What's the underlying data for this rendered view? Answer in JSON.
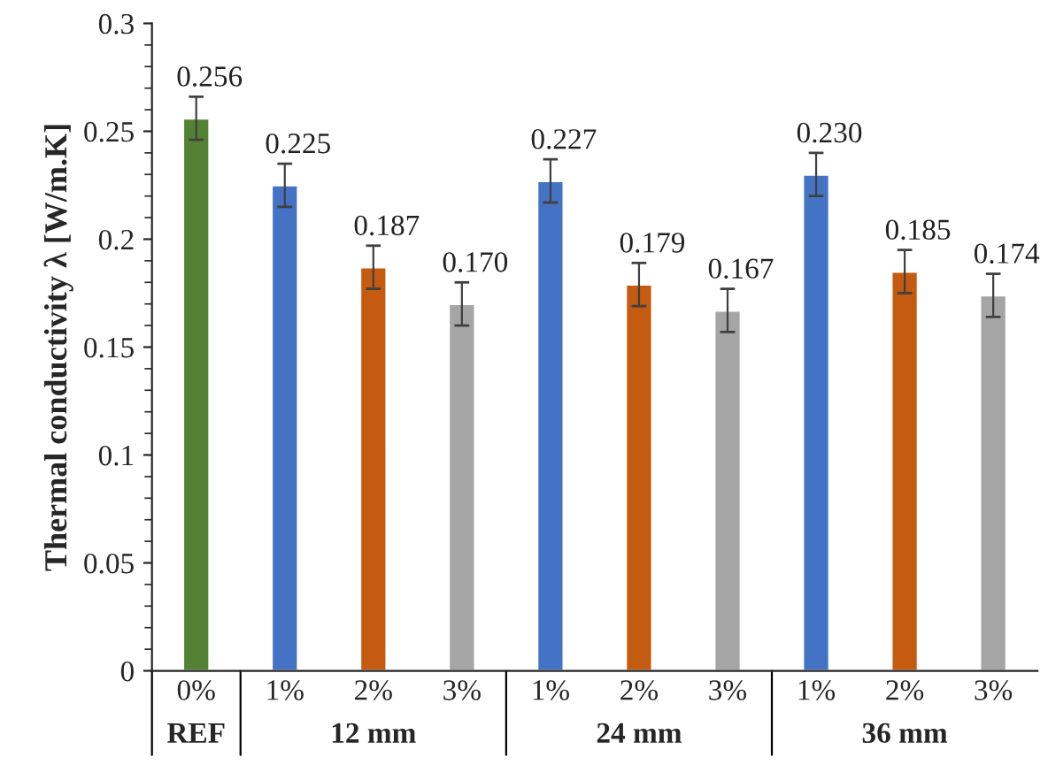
{
  "chart_data": {
    "type": "bar",
    "ylabel": "Thermal conductivity λ [W/m.K]",
    "categories": [
      "0%",
      "1%",
      "2%",
      "3%",
      "1%",
      "2%",
      "3%",
      "1%",
      "2%",
      "3%"
    ],
    "values": [
      0.256,
      0.225,
      0.187,
      0.17,
      0.227,
      0.179,
      0.167,
      0.23,
      0.185,
      0.174
    ],
    "errors": [
      0.01,
      0.01,
      0.01,
      0.01,
      0.01,
      0.01,
      0.01,
      0.01,
      0.01,
      0.01
    ],
    "colors": [
      "#548235",
      "#4472c4",
      "#c55a11",
      "#a5a5a5",
      "#4472c4",
      "#c55a11",
      "#a5a5a5",
      "#4472c4",
      "#c55a11",
      "#a5a5a5"
    ],
    "value_labels": [
      "0.256",
      "0.225",
      "0.187",
      "0.170",
      "0.227",
      "0.179",
      "0.167",
      "0.230",
      "0.185",
      "0.174"
    ],
    "ylim": [
      0,
      0.3
    ],
    "yticks": [
      0,
      0.05,
      0.1,
      0.15,
      0.2,
      0.25,
      0.3
    ],
    "annotations": [
      "REF",
      "12 mm",
      "24 mm",
      "36 mm"
    ],
    "grid": false,
    "legend": false
  }
}
